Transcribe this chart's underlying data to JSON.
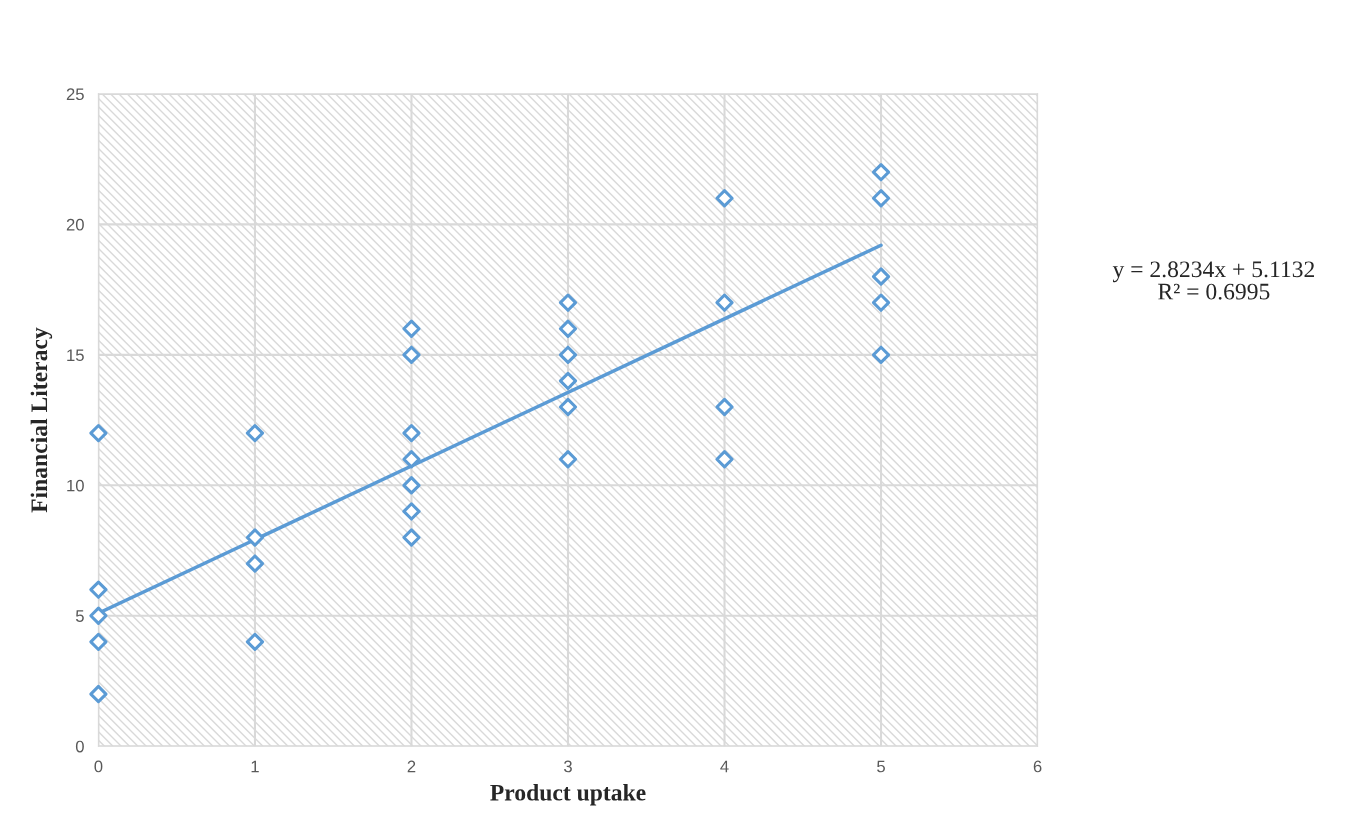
{
  "chart_data": {
    "type": "scatter",
    "xlabel": "Product uptake",
    "ylabel": "Financial Literacy",
    "xlim": [
      0,
      6
    ],
    "ylim": [
      0,
      25
    ],
    "xticks": [
      0,
      1,
      2,
      3,
      4,
      5,
      6
    ],
    "yticks": [
      0,
      5,
      10,
      15,
      20,
      25
    ],
    "grid": true,
    "series": [
      {
        "color": "#5b9bd5",
        "marker": "diamond",
        "x": [
          0,
          0,
          0,
          0,
          0,
          1,
          1,
          1,
          1,
          2,
          2,
          2,
          2,
          2,
          2,
          2,
          3,
          3,
          3,
          3,
          3,
          3,
          4,
          4,
          4,
          4,
          5,
          5,
          5,
          5,
          5
        ],
        "values": [
          12,
          6,
          5,
          4,
          2,
          12,
          8,
          7,
          4,
          16,
          15,
          12,
          11,
          10,
          9,
          8,
          17,
          16,
          15,
          14,
          13,
          11,
          21,
          17,
          13,
          11,
          22,
          21,
          18,
          17,
          15
        ]
      },
      {
        "type": "line",
        "color": "#5b9bd5",
        "marker": "none",
        "line_style": "solid",
        "x": [
          0,
          5
        ],
        "values": [
          5.1,
          19.2
        ]
      }
    ],
    "annotations": [
      "y = 2.8234x + 5.1132\nR² = 0.6995"
    ]
  }
}
